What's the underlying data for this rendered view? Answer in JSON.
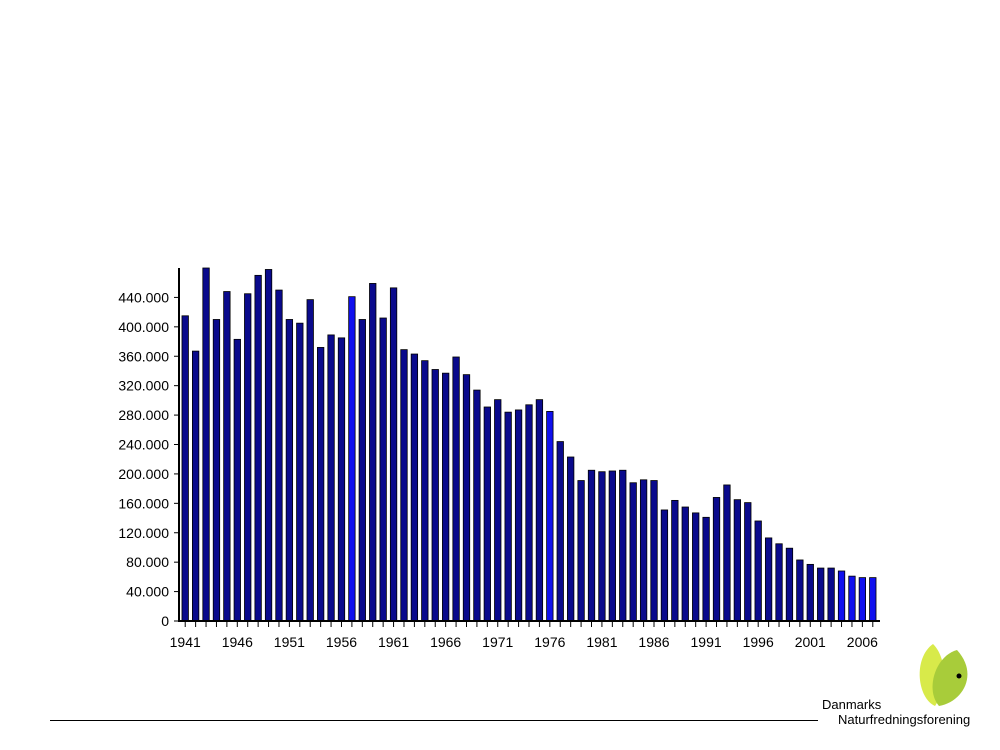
{
  "chart_data": {
    "type": "bar",
    "title": "",
    "xlabel": "",
    "ylabel": "",
    "x": [
      1941,
      1942,
      1943,
      1944,
      1945,
      1946,
      1947,
      1948,
      1949,
      1950,
      1951,
      1952,
      1953,
      1954,
      1955,
      1956,
      1957,
      1958,
      1959,
      1960,
      1961,
      1962,
      1963,
      1964,
      1965,
      1966,
      1967,
      1968,
      1969,
      1970,
      1971,
      1972,
      1973,
      1974,
      1975,
      1976,
      1977,
      1978,
      1979,
      1980,
      1981,
      1982,
      1983,
      1984,
      1985,
      1986,
      1987,
      1988,
      1989,
      1990,
      1991,
      1992,
      1993,
      1994,
      1995,
      1996,
      1997,
      1998,
      1999,
      2000,
      2001,
      2002,
      2003,
      2004,
      2005,
      2006,
      2007
    ],
    "values": [
      415000,
      367000,
      480000,
      410000,
      448000,
      383000,
      445000,
      470000,
      478000,
      450000,
      410000,
      405000,
      437000,
      372000,
      389000,
      385000,
      441000,
      410000,
      459000,
      412000,
      453000,
      369000,
      363000,
      354000,
      342000,
      337000,
      359000,
      335000,
      314000,
      291000,
      301000,
      284000,
      287000,
      294000,
      301000,
      285000,
      244000,
      223000,
      191000,
      205000,
      203000,
      204000,
      205000,
      188000,
      192000,
      191000,
      151000,
      164000,
      155000,
      147000,
      141000,
      168000,
      185000,
      165000,
      161000,
      136000,
      113000,
      105000,
      99000,
      83000,
      77000,
      72000,
      72000,
      68000,
      61000,
      59000,
      59000
    ],
    "x_tick_labels": [
      "1941",
      "1946",
      "1951",
      "1956",
      "1961",
      "1966",
      "1971",
      "1976",
      "1981",
      "1986",
      "1991",
      "1996",
      "2001",
      "2006"
    ],
    "y_tick_labels": [
      "0",
      "40.000",
      "80.000",
      "120.000",
      "160.000",
      "200.000",
      "240.000",
      "280.000",
      "320.000",
      "360.000",
      "400.000",
      "440.000"
    ],
    "ylim": [
      0,
      480000
    ],
    "grid": false,
    "bar_colors": {
      "dark": "#0a0a8c",
      "bright": "#1010ee",
      "outline": "#000000"
    }
  },
  "logo": {
    "line1": "Danmarks",
    "line2": "Naturfredningsforening",
    "colors": {
      "leaf_light": "#d8ea4a",
      "leaf_dark": "#a8cc3a"
    }
  }
}
